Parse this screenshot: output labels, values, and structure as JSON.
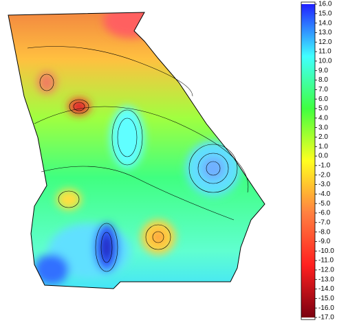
{
  "chart_data": {
    "type": "contour-map",
    "colorbar": {
      "lim": [
        -17,
        16
      ],
      "colormap": [
        "#7a0010",
        "#ff2020",
        "#ff8040",
        "#ffff20",
        "#40ff40",
        "#40ffff",
        "#2020ff"
      ],
      "ticks": [
        {
          "value": 16,
          "label": "16.0"
        },
        {
          "value": 15,
          "label": "15.0"
        },
        {
          "value": 14,
          "label": "14.0"
        },
        {
          "value": 13,
          "label": "13.0"
        },
        {
          "value": 12,
          "label": "12.0"
        },
        {
          "value": 11,
          "label": "11.0"
        },
        {
          "value": 10,
          "label": "10.0"
        },
        {
          "value": 9,
          "label": "9.0"
        },
        {
          "value": 8,
          "label": "8.0"
        },
        {
          "value": 7,
          "label": "7.0"
        },
        {
          "value": 6,
          "label": "6.0"
        },
        {
          "value": 5,
          "label": "5.0"
        },
        {
          "value": 4,
          "label": "4.0"
        },
        {
          "value": 3,
          "label": "3.0"
        },
        {
          "value": 2,
          "label": "2.0"
        },
        {
          "value": 1,
          "label": "1.0"
        },
        {
          "value": 0,
          "label": "0.0"
        },
        {
          "value": -1,
          "label": "-1.0"
        },
        {
          "value": -2,
          "label": "-2.0"
        },
        {
          "value": -3,
          "label": "-3.0"
        },
        {
          "value": -4,
          "label": "-4.0"
        },
        {
          "value": -5,
          "label": "-5.0"
        },
        {
          "value": -6,
          "label": "-6.0"
        },
        {
          "value": -7,
          "label": "-7.0"
        },
        {
          "value": -8,
          "label": "-8.0"
        },
        {
          "value": -9,
          "label": "-9.0"
        },
        {
          "value": -10,
          "label": "-10.0"
        },
        {
          "value": -11,
          "label": "-11.0"
        },
        {
          "value": -12,
          "label": "-12.0"
        },
        {
          "value": -13,
          "label": "-13.0"
        },
        {
          "value": -14,
          "label": "-14.0"
        },
        {
          "value": -15,
          "label": "-15.0"
        },
        {
          "value": -16,
          "label": "-16.0"
        },
        {
          "value": -17,
          "label": "-17.0"
        }
      ]
    }
  }
}
